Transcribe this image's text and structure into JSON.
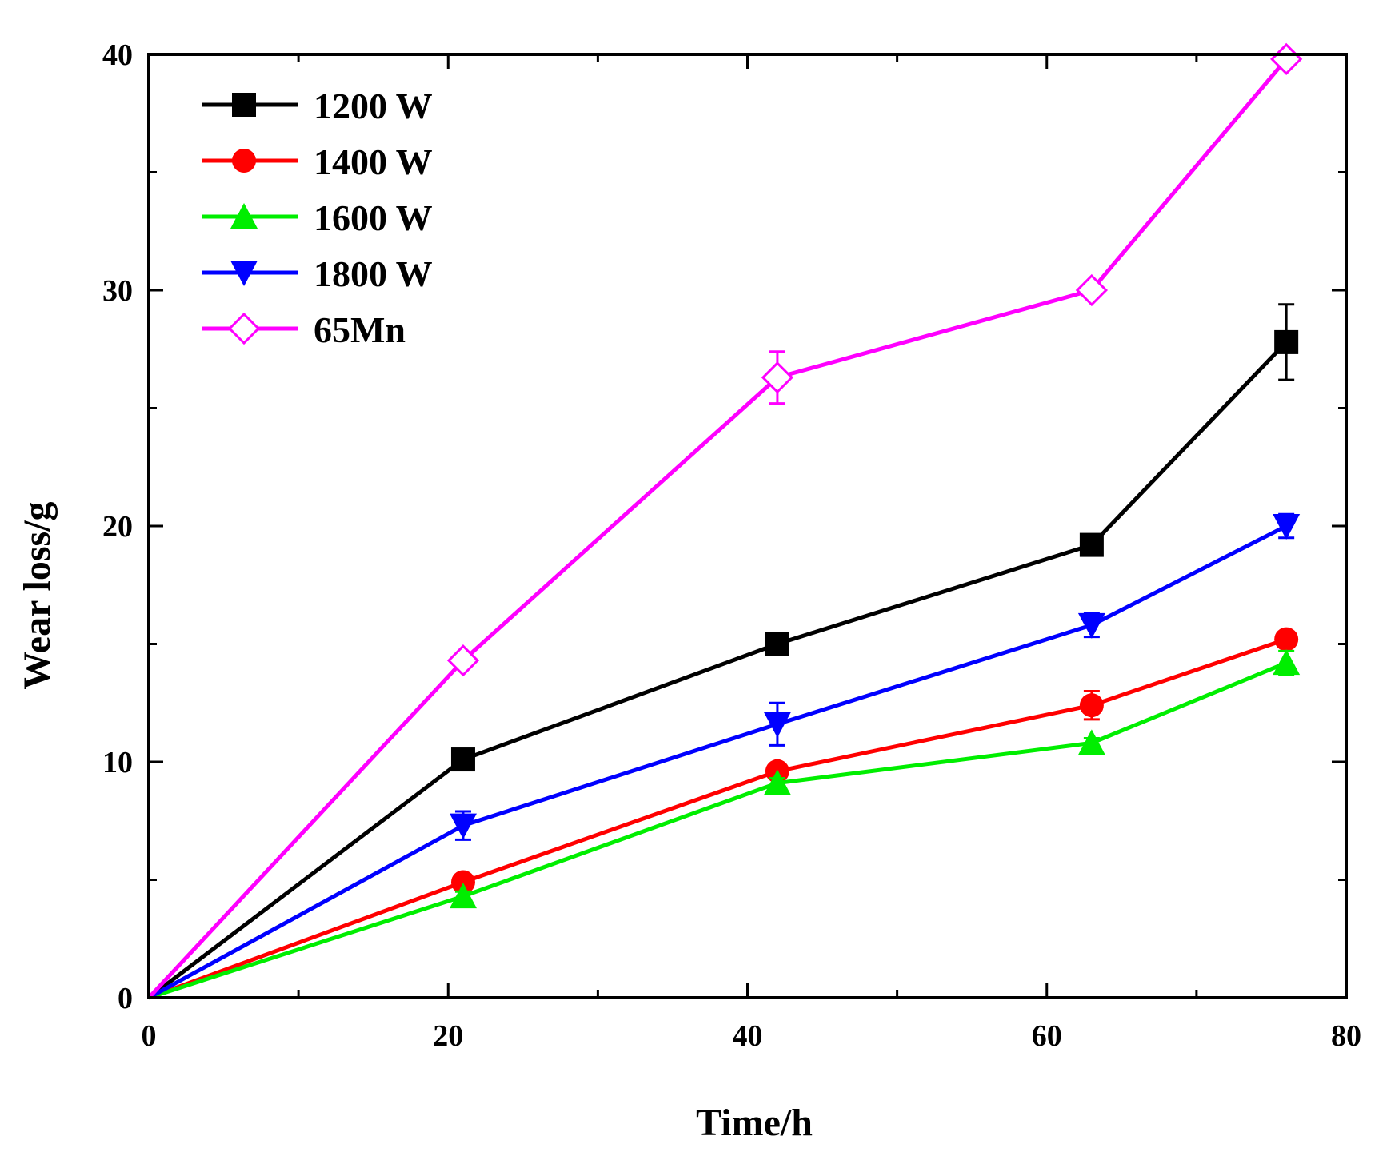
{
  "chart_data": {
    "type": "line",
    "title": "",
    "xlabel": "Time/h",
    "ylabel": "Wear loss/g",
    "xlim": [
      0,
      80
    ],
    "ylim": [
      0,
      40
    ],
    "xticks": [
      0,
      20,
      40,
      60,
      80
    ],
    "yticks": [
      0,
      10,
      20,
      30,
      40
    ],
    "x_minor_step": 10,
    "y_minor_step": 5,
    "grid": false,
    "legend_position": "top-left",
    "x": [
      0,
      21,
      42,
      63,
      76
    ],
    "series": [
      {
        "name": "1200 W",
        "color": "#000000",
        "marker": "square",
        "values": [
          0,
          10.1,
          15.0,
          19.2,
          27.8
        ],
        "errors": [
          0,
          0.25,
          0.25,
          0.3,
          1.6
        ]
      },
      {
        "name": "1400 W",
        "color": "#ff0000",
        "marker": "circle",
        "values": [
          0,
          4.9,
          9.6,
          12.4,
          15.2
        ],
        "errors": [
          0,
          0.2,
          0.3,
          0.6,
          0.3
        ]
      },
      {
        "name": "1600 W",
        "color": "#00ee00",
        "marker": "triangle-up",
        "values": [
          0,
          4.3,
          9.1,
          10.8,
          14.2
        ],
        "errors": [
          0,
          0.2,
          0.2,
          0.2,
          0.5
        ]
      },
      {
        "name": "1800 W",
        "color": "#0000ff",
        "marker": "triangle-down",
        "values": [
          0,
          7.3,
          11.6,
          15.8,
          20.0
        ],
        "errors": [
          0,
          0.6,
          0.9,
          0.5,
          0.5
        ]
      },
      {
        "name": "65Mn",
        "color": "#ff00ff",
        "marker": "diamond-open",
        "values": [
          0,
          14.3,
          26.3,
          30.0,
          39.8
        ],
        "errors": [
          0,
          0.2,
          1.1,
          0.3,
          0.3
        ]
      }
    ]
  }
}
